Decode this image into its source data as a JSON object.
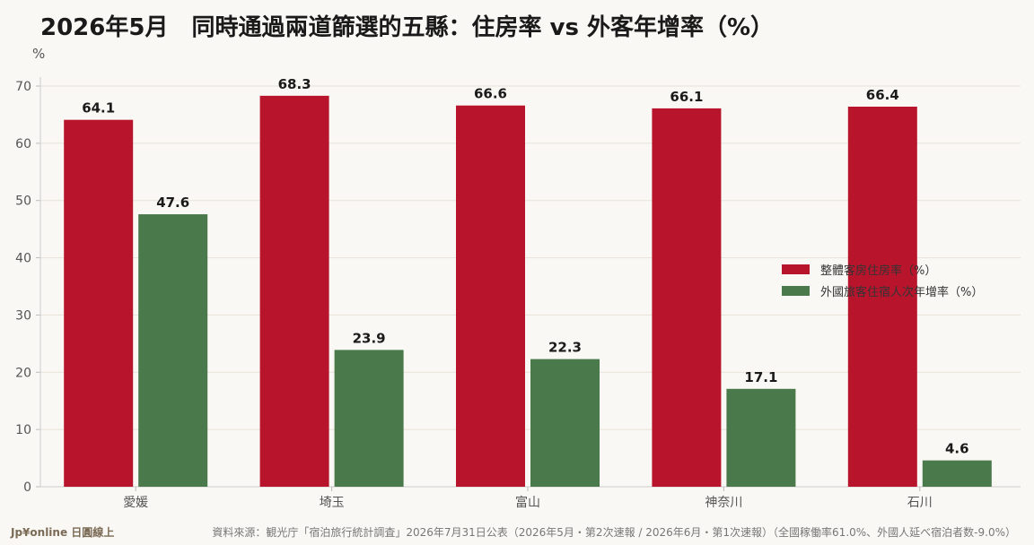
{
  "chart_data": {
    "type": "bar",
    "title": "2026年5月　同時通過兩道篩選的五縣：住房率 vs 外客年增率（%）",
    "ylabel": "%",
    "ylim": [
      0,
      70
    ],
    "yticks": [
      0,
      10,
      20,
      30,
      40,
      50,
      60,
      70
    ],
    "categories": [
      "愛媛",
      "埼玉",
      "富山",
      "神奈川",
      "石川"
    ],
    "series": [
      {
        "name": "整體客房住房率（%）",
        "color": "#b8152d",
        "values": [
          64.1,
          68.3,
          66.6,
          66.1,
          66.4
        ]
      },
      {
        "name": "外國旅客住宿人次年增率（%）",
        "color": "#4a7a4c",
        "values": [
          47.6,
          23.9,
          22.3,
          17.1,
          4.6
        ]
      }
    ],
    "grid": true,
    "legend_position": "right"
  },
  "footer": {
    "brand": "Jp¥online 日圓線上",
    "source": "資料來源：観光庁「宿泊旅行統計調査」2026年7月31日公表（2026年5月・第2次速報 / 2026年6月・第1次速報）（全國稼働率61.0%、外國人延べ宿泊者数-9.0%）"
  }
}
